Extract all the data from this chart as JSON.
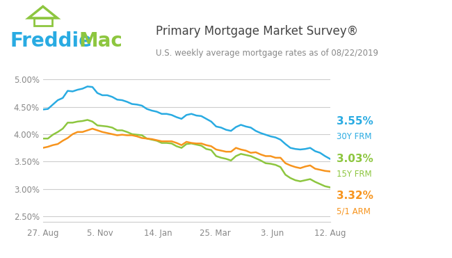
{
  "title": "Primary Mortgage Market Survey®",
  "subtitle": "U.S. weekly average mortgage rates as of 08/22/2019",
  "xlabel_ticks": [
    "27. Aug",
    "5. Nov",
    "14. Jan",
    "25. Mar",
    "3. Jun",
    "12. Aug"
  ],
  "ylabel_ticks": [
    0.025,
    0.03,
    0.035,
    0.04,
    0.045,
    0.05
  ],
  "ylim": [
    0.024,
    0.052
  ],
  "colors": {
    "30y": "#29ABE2",
    "15y": "#8DC63F",
    "arm": "#F7941D"
  },
  "legend": {
    "30y_val": "3.55%",
    "30y_label": "30Y FRM",
    "15y_val": "3.03%",
    "15y_label": "15Y FRM",
    "arm_val": "3.32%",
    "arm_label": "5/1 ARM"
  },
  "background_color": "#ffffff",
  "plot_bg_color": "#ffffff",
  "grid_color": "#cccccc",
  "header_bg": "#ffffff",
  "freddie_blue": "#29ABE2",
  "freddie_green": "#8DC63F",
  "title_color": "#444444",
  "subtitle_color": "#888888",
  "tick_color": "#888888",
  "30y_frm": [
    4.45,
    4.46,
    4.54,
    4.62,
    4.66,
    4.79,
    4.78,
    4.81,
    4.83,
    4.87,
    4.86,
    4.75,
    4.71,
    4.71,
    4.68,
    4.63,
    4.62,
    4.59,
    4.55,
    4.54,
    4.52,
    4.46,
    4.43,
    4.41,
    4.37,
    4.37,
    4.35,
    4.31,
    4.28,
    4.35,
    4.37,
    4.34,
    4.33,
    4.28,
    4.23,
    4.14,
    4.12,
    4.08,
    4.06,
    4.13,
    4.17,
    4.14,
    4.12,
    4.06,
    4.02,
    3.99,
    3.96,
    3.94,
    3.9,
    3.82,
    3.75,
    3.73,
    3.72,
    3.73,
    3.75,
    3.69,
    3.66,
    3.6,
    3.55
  ],
  "15y_frm": [
    3.92,
    3.92,
    3.99,
    4.04,
    4.1,
    4.21,
    4.21,
    4.23,
    4.24,
    4.26,
    4.23,
    4.16,
    4.15,
    4.14,
    4.12,
    4.07,
    4.07,
    4.04,
    4.0,
    3.99,
    3.98,
    3.92,
    3.9,
    3.88,
    3.84,
    3.84,
    3.83,
    3.78,
    3.75,
    3.82,
    3.83,
    3.81,
    3.79,
    3.73,
    3.71,
    3.6,
    3.57,
    3.55,
    3.52,
    3.6,
    3.64,
    3.62,
    3.6,
    3.56,
    3.52,
    3.47,
    3.46,
    3.44,
    3.4,
    3.26,
    3.2,
    3.16,
    3.14,
    3.16,
    3.18,
    3.13,
    3.09,
    3.05,
    3.03
  ],
  "arm_5_1": [
    3.75,
    3.77,
    3.8,
    3.82,
    3.88,
    3.93,
    4.0,
    4.04,
    4.04,
    4.07,
    4.1,
    4.07,
    4.04,
    4.02,
    4.0,
    3.98,
    3.99,
    3.98,
    3.98,
    3.96,
    3.93,
    3.92,
    3.91,
    3.89,
    3.87,
    3.87,
    3.87,
    3.84,
    3.8,
    3.86,
    3.84,
    3.83,
    3.83,
    3.8,
    3.78,
    3.72,
    3.7,
    3.68,
    3.68,
    3.75,
    3.72,
    3.7,
    3.66,
    3.67,
    3.63,
    3.6,
    3.6,
    3.57,
    3.57,
    3.47,
    3.43,
    3.4,
    3.38,
    3.41,
    3.43,
    3.37,
    3.35,
    3.33,
    3.32
  ]
}
